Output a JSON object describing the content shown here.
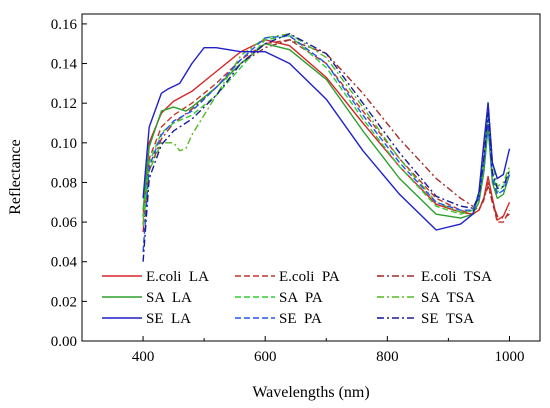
{
  "chart_data": {
    "type": "line",
    "title": "",
    "xlabel": "Wavelengths (nm)",
    "ylabel": "Reflectance",
    "xlim": [
      300,
      1050
    ],
    "ylim": [
      0.0,
      0.165
    ],
    "x_ticks": [
      400,
      600,
      800,
      1000
    ],
    "y_ticks": [
      "0.00",
      "0.02",
      "0.04",
      "0.06",
      "0.08",
      "0.10",
      "0.12",
      "0.14",
      "0.16"
    ],
    "grid": false,
    "legend_position": "bottom",
    "series": [
      {
        "name": "E.coli  LA",
        "color": "#d62728",
        "dash": "solid",
        "x": [
          400,
          410,
          430,
          450,
          480,
          520,
          560,
          600,
          640,
          700,
          760,
          820,
          880,
          920,
          940,
          950,
          958,
          965,
          972,
          980,
          990,
          1000
        ],
        "y": [
          0.063,
          0.1,
          0.115,
          0.121,
          0.126,
          0.136,
          0.146,
          0.152,
          0.149,
          0.133,
          0.11,
          0.088,
          0.069,
          0.065,
          0.064,
          0.066,
          0.072,
          0.083,
          0.072,
          0.061,
          0.063,
          0.07
        ]
      },
      {
        "name": "E.coli  PA",
        "color": "#c0392b",
        "dash": "dash",
        "x": [
          400,
          410,
          430,
          450,
          480,
          520,
          560,
          600,
          640,
          700,
          760,
          820,
          880,
          920,
          940,
          950,
          958,
          965,
          972,
          980,
          990,
          1000
        ],
        "y": [
          0.059,
          0.092,
          0.108,
          0.114,
          0.12,
          0.13,
          0.142,
          0.15,
          0.152,
          0.14,
          0.116,
          0.092,
          0.072,
          0.066,
          0.064,
          0.066,
          0.071,
          0.08,
          0.07,
          0.06,
          0.06,
          0.066
        ]
      },
      {
        "name": "E.coli  TSA",
        "color": "#a52a2a",
        "dash": "dashdot",
        "x": [
          400,
          410,
          430,
          450,
          480,
          520,
          560,
          600,
          640,
          700,
          760,
          820,
          880,
          920,
          940,
          950,
          958,
          965,
          972,
          980,
          990,
          1000
        ],
        "y": [
          0.055,
          0.086,
          0.102,
          0.11,
          0.117,
          0.128,
          0.14,
          0.148,
          0.152,
          0.145,
          0.125,
          0.102,
          0.082,
          0.072,
          0.068,
          0.066,
          0.072,
          0.078,
          0.07,
          0.063,
          0.062,
          0.064
        ]
      },
      {
        "name": "SA  LA",
        "color": "#2ca02c",
        "dash": "solid",
        "x": [
          400,
          410,
          430,
          450,
          470,
          480,
          520,
          560,
          600,
          640,
          700,
          760,
          820,
          880,
          920,
          940,
          950,
          958,
          965,
          972,
          980,
          990,
          1000
        ],
        "y": [
          0.066,
          0.098,
          0.116,
          0.118,
          0.116,
          0.118,
          0.128,
          0.14,
          0.15,
          0.147,
          0.132,
          0.106,
          0.082,
          0.064,
          0.062,
          0.064,
          0.07,
          0.085,
          0.108,
          0.08,
          0.072,
          0.074,
          0.084
        ]
      },
      {
        "name": "SA  PA",
        "color": "#33cc33",
        "dash": "dash",
        "x": [
          400,
          410,
          430,
          450,
          480,
          520,
          560,
          600,
          640,
          700,
          760,
          820,
          880,
          920,
          940,
          950,
          958,
          965,
          972,
          980,
          990,
          1000
        ],
        "y": [
          0.062,
          0.09,
          0.105,
          0.11,
          0.114,
          0.124,
          0.138,
          0.152,
          0.154,
          0.138,
          0.112,
          0.088,
          0.068,
          0.064,
          0.066,
          0.072,
          0.09,
          0.115,
          0.085,
          0.075,
          0.078,
          0.086
        ]
      },
      {
        "name": "SA  TSA",
        "color": "#55bb22",
        "dash": "dashdot",
        "x": [
          400,
          410,
          430,
          450,
          460,
          470,
          480,
          520,
          560,
          600,
          640,
          700,
          760,
          820,
          880,
          920,
          940,
          950,
          958,
          965,
          972,
          980,
          990,
          1000
        ],
        "y": [
          0.058,
          0.086,
          0.1,
          0.1,
          0.096,
          0.097,
          0.104,
          0.124,
          0.144,
          0.153,
          0.155,
          0.143,
          0.118,
          0.092,
          0.07,
          0.065,
          0.066,
          0.075,
          0.095,
          0.121,
          0.09,
          0.078,
          0.08,
          0.088
        ]
      },
      {
        "name": "SE  LA",
        "color": "#1f1fcc",
        "dash": "solid",
        "x": [
          400,
          410,
          430,
          440,
          460,
          480,
          500,
          520,
          560,
          600,
          640,
          700,
          760,
          820,
          880,
          920,
          940,
          950,
          958,
          965,
          972,
          980,
          990,
          1000
        ],
        "y": [
          0.072,
          0.108,
          0.125,
          0.127,
          0.13,
          0.14,
          0.148,
          0.148,
          0.146,
          0.146,
          0.14,
          0.122,
          0.096,
          0.074,
          0.056,
          0.059,
          0.064,
          0.075,
          0.1,
          0.12,
          0.09,
          0.082,
          0.084,
          0.097
        ]
      },
      {
        "name": "SE  PA",
        "color": "#2255ee",
        "dash": "dash",
        "x": [
          400,
          410,
          430,
          450,
          480,
          520,
          560,
          600,
          640,
          700,
          760,
          820,
          880,
          920,
          940,
          950,
          958,
          965,
          972,
          980,
          990,
          1000
        ],
        "y": [
          0.045,
          0.088,
          0.104,
          0.111,
          0.116,
          0.128,
          0.142,
          0.153,
          0.154,
          0.14,
          0.114,
          0.09,
          0.07,
          0.066,
          0.066,
          0.072,
          0.09,
          0.112,
          0.082,
          0.074,
          0.076,
          0.084
        ]
      },
      {
        "name": "SE  TSA",
        "color": "#1a1a99",
        "dash": "dashdot",
        "x": [
          400,
          410,
          430,
          450,
          480,
          520,
          560,
          600,
          640,
          700,
          760,
          820,
          880,
          920,
          940,
          950,
          958,
          965,
          972,
          980,
          990,
          1000
        ],
        "y": [
          0.04,
          0.082,
          0.099,
          0.106,
          0.112,
          0.124,
          0.14,
          0.15,
          0.155,
          0.145,
          0.12,
          0.095,
          0.073,
          0.068,
          0.067,
          0.073,
          0.092,
          0.115,
          0.085,
          0.077,
          0.078,
          0.086
        ]
      }
    ]
  }
}
